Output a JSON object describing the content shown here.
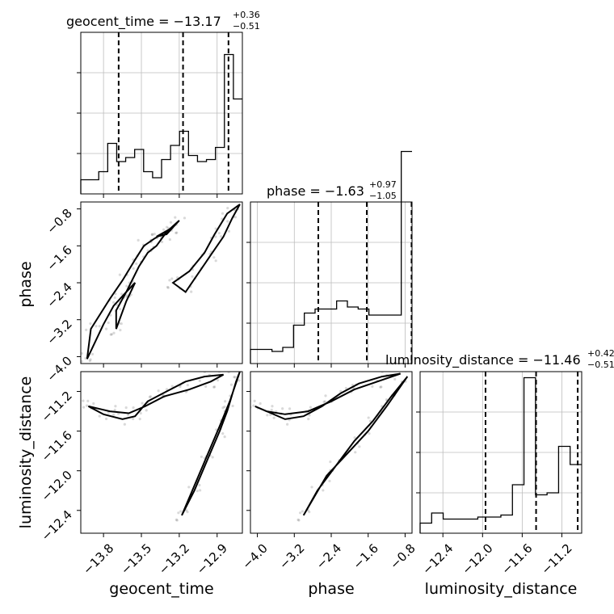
{
  "chart_data": {
    "type": "corner",
    "parameters": [
      "geocent_time",
      "phase",
      "luminosity_distance"
    ],
    "titles": [
      {
        "param": "geocent_time",
        "text": "geocent_time = −13.17",
        "plus": "+0.36",
        "minus": "−0.51"
      },
      {
        "param": "phase",
        "text": "phase = −1.63",
        "plus": "+0.97",
        "minus": "−1.05"
      },
      {
        "param": "luminosity_distance",
        "text": "luminosity_distance = −11.46",
        "plus": "+0.42",
        "minus": "−0.51"
      }
    ],
    "ranges": {
      "geocent_time": [
        -13.98,
        -12.7
      ],
      "phase": [
        -4.15,
        -0.65
      ],
      "luminosity_distance": [
        -12.63,
        -11.0
      ]
    },
    "ticks": {
      "geocent_time": [
        {
          "v": -13.8,
          "label": "−13.8"
        },
        {
          "v": -13.5,
          "label": "−13.5"
        },
        {
          "v": -13.2,
          "label": "−13.2"
        },
        {
          "v": -12.9,
          "label": "−12.9"
        }
      ],
      "phase": [
        {
          "v": -4.0,
          "label": "−4.0"
        },
        {
          "v": -3.2,
          "label": "−3.2"
        },
        {
          "v": -2.4,
          "label": "−2.4"
        },
        {
          "v": -1.6,
          "label": "−1.6"
        },
        {
          "v": -0.8,
          "label": "−0.8"
        }
      ],
      "luminosity_distance": [
        {
          "v": -12.4,
          "label": "−12.4"
        },
        {
          "v": -12.0,
          "label": "−12.0"
        },
        {
          "v": -11.6,
          "label": "−11.6"
        },
        {
          "v": -11.2,
          "label": "−11.2"
        }
      ]
    },
    "quantiles": {
      "geocent_time": [
        -13.68,
        -13.17,
        -12.81
      ],
      "phase": [
        -2.68,
        -1.63,
        -0.66
      ],
      "luminosity_distance": [
        -11.97,
        -11.46,
        -11.04
      ]
    },
    "histograms": {
      "geocent_time": [
        0.35,
        0.35,
        0.55,
        1.25,
        0.8,
        0.9,
        1.1,
        0.55,
        0.4,
        0.85,
        1.2,
        1.55,
        0.95,
        0.8,
        0.85,
        1.15,
        3.45,
        2.35
      ],
      "phase": [
        0.35,
        0.35,
        0.3,
        0.4,
        0.95,
        1.25,
        1.35,
        1.35,
        1.55,
        1.4,
        1.35,
        1.2,
        1.2,
        1.2,
        5.25
      ],
      "luminosity_distance": [
        0.25,
        0.5,
        0.35,
        0.35,
        0.35,
        0.4,
        0.4,
        0.45,
        1.2,
        3.85,
        0.95,
        1.0,
        2.15,
        1.7
      ]
    },
    "hist_ylim": [
      0,
      4.0
    ],
    "contours": {
      "phase_vs_geocent_time": [
        [
          [
            -13.93,
            -4.05
          ],
          [
            -13.8,
            -3.3
          ],
          [
            -13.72,
            -2.9
          ],
          [
            -13.62,
            -2.6
          ],
          [
            -13.52,
            -2.05
          ],
          [
            -13.45,
            -1.75
          ],
          [
            -13.38,
            -1.6
          ],
          [
            -13.3,
            -1.3
          ],
          [
            -13.2,
            -1.05
          ],
          [
            -13.25,
            -1.2
          ],
          [
            -13.4,
            -1.45
          ],
          [
            -13.48,
            -1.6
          ],
          [
            -13.55,
            -1.9
          ],
          [
            -13.65,
            -2.35
          ],
          [
            -13.75,
            -2.75
          ],
          [
            -13.9,
            -3.4
          ],
          [
            -13.93,
            -4.05
          ]
        ],
        [
          [
            -13.25,
            -2.4
          ],
          [
            -13.15,
            -2.6
          ],
          [
            -13.05,
            -2.2
          ],
          [
            -12.95,
            -1.8
          ],
          [
            -12.85,
            -1.4
          ],
          [
            -12.78,
            -1.0
          ],
          [
            -12.72,
            -0.7
          ],
          [
            -12.82,
            -0.9
          ],
          [
            -12.92,
            -1.35
          ],
          [
            -13.0,
            -1.75
          ],
          [
            -13.12,
            -2.15
          ],
          [
            -13.25,
            -2.4
          ]
        ],
        [
          [
            -13.7,
            -3.4
          ],
          [
            -13.62,
            -2.8
          ],
          [
            -13.55,
            -2.4
          ],
          [
            -13.62,
            -2.6
          ],
          [
            -13.7,
            -3.0
          ],
          [
            -13.7,
            -3.4
          ]
        ],
        [
          [
            -13.38,
            -1.4
          ],
          [
            -13.25,
            -1.2
          ],
          [
            -13.3,
            -1.35
          ],
          [
            -13.38,
            -1.4
          ]
        ]
      ],
      "lumdist_vs_geocent_time": [
        [
          [
            -13.92,
            -11.35
          ],
          [
            -13.8,
            -11.43
          ],
          [
            -13.65,
            -11.48
          ],
          [
            -13.55,
            -11.45
          ],
          [
            -13.45,
            -11.3
          ],
          [
            -13.3,
            -11.2
          ],
          [
            -13.15,
            -11.1
          ],
          [
            -13.0,
            -11.05
          ],
          [
            -12.85,
            -11.03
          ],
          [
            -12.95,
            -11.1
          ],
          [
            -13.12,
            -11.18
          ],
          [
            -13.32,
            -11.25
          ],
          [
            -13.47,
            -11.35
          ],
          [
            -13.6,
            -11.42
          ],
          [
            -13.75,
            -11.4
          ],
          [
            -13.92,
            -11.35
          ]
        ],
        [
          [
            -13.18,
            -12.45
          ],
          [
            -13.08,
            -12.2
          ],
          [
            -12.98,
            -11.9
          ],
          [
            -12.88,
            -11.6
          ],
          [
            -12.82,
            -11.4
          ],
          [
            -12.75,
            -11.1
          ],
          [
            -12.72,
            -11.0
          ],
          [
            -12.8,
            -11.3
          ],
          [
            -12.88,
            -11.55
          ],
          [
            -12.98,
            -11.85
          ],
          [
            -13.08,
            -12.15
          ],
          [
            -13.18,
            -12.45
          ]
        ]
      ],
      "lumdist_vs_phase": [
        [
          [
            -4.05,
            -11.35
          ],
          [
            -3.7,
            -11.42
          ],
          [
            -3.4,
            -11.48
          ],
          [
            -3.0,
            -11.45
          ],
          [
            -2.6,
            -11.35
          ],
          [
            -2.2,
            -11.22
          ],
          [
            -1.8,
            -11.12
          ],
          [
            -1.3,
            -11.05
          ],
          [
            -0.9,
            -11.02
          ],
          [
            -1.4,
            -11.1
          ],
          [
            -1.9,
            -11.18
          ],
          [
            -2.4,
            -11.3
          ],
          [
            -2.9,
            -11.4
          ],
          [
            -3.4,
            -11.43
          ],
          [
            -3.8,
            -11.4
          ],
          [
            -4.05,
            -11.35
          ]
        ],
        [
          [
            -3.0,
            -12.45
          ],
          [
            -2.7,
            -12.2
          ],
          [
            -2.3,
            -11.95
          ],
          [
            -1.9,
            -11.7
          ],
          [
            -1.5,
            -11.5
          ],
          [
            -1.1,
            -11.25
          ],
          [
            -0.75,
            -11.05
          ],
          [
            -1.2,
            -11.35
          ],
          [
            -1.6,
            -11.6
          ],
          [
            -2.0,
            -11.8
          ],
          [
            -2.5,
            -12.05
          ],
          [
            -3.0,
            -12.45
          ]
        ]
      ]
    }
  }
}
